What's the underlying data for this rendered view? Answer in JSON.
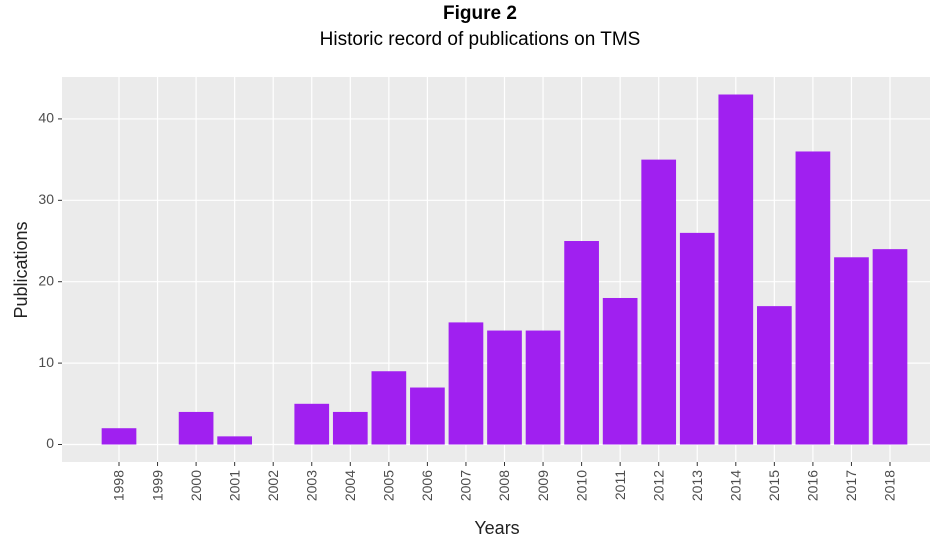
{
  "chart_data": {
    "type": "bar",
    "title": "Figure 2",
    "subtitle": "Historic record of publications on TMS",
    "x_label": "Years",
    "y_label": "Publications",
    "categories": [
      "1998",
      "1999",
      "2000",
      "2001",
      "2002",
      "2003",
      "2004",
      "2005",
      "2006",
      "2007",
      "2008",
      "2009",
      "2010",
      "2011",
      "2012",
      "2013",
      "2014",
      "2015",
      "2016",
      "2017",
      "2018"
    ],
    "values": [
      2,
      0,
      4,
      1,
      0,
      5,
      4,
      9,
      7,
      15,
      14,
      14,
      25,
      18,
      35,
      26,
      43,
      17,
      36,
      23,
      24
    ],
    "color": "#a020f0",
    "ylim": [
      -2.15,
      45.15
    ],
    "yticks": [
      0,
      10,
      20,
      30,
      40
    ],
    "grid": true
  }
}
